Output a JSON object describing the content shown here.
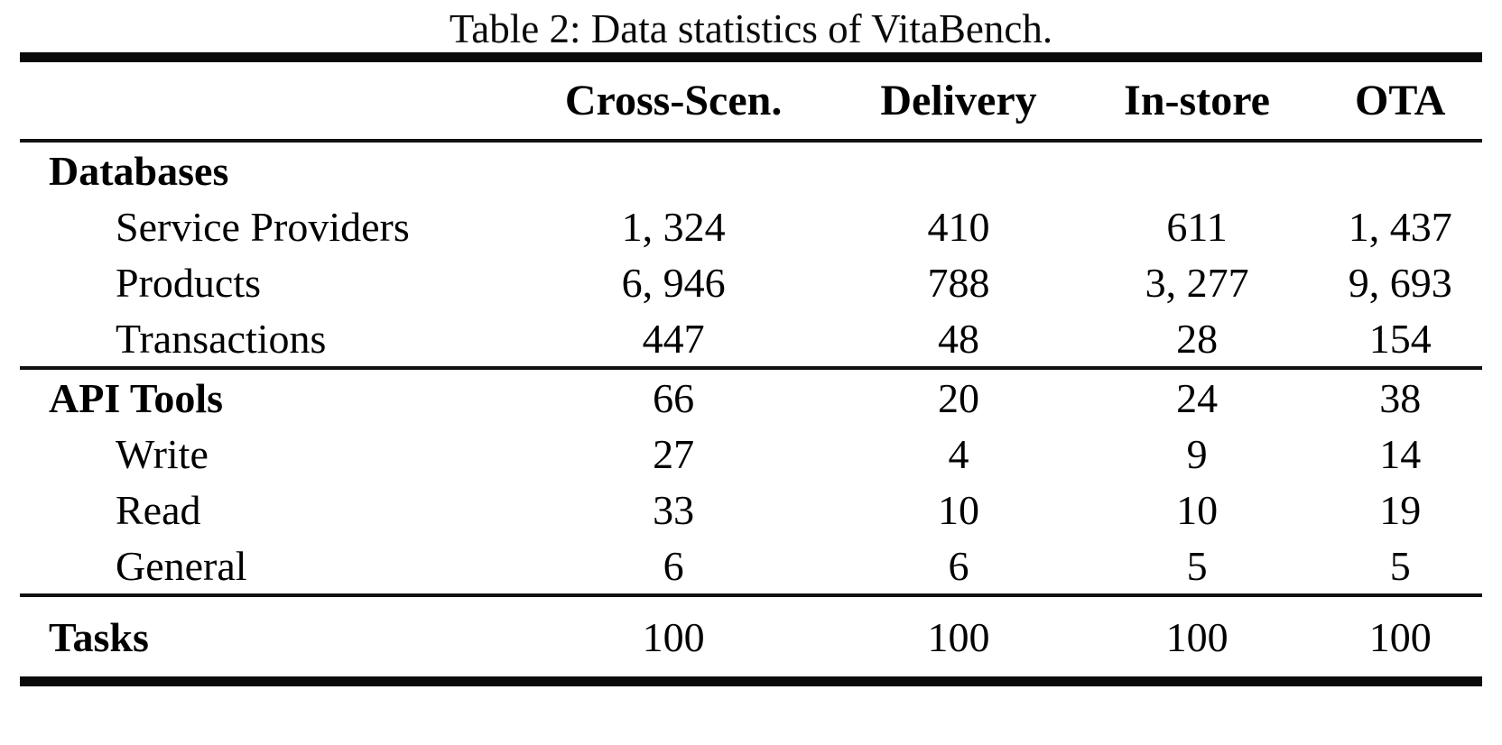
{
  "title": "Table 2: Data statistics of VitaBench.",
  "table": {
    "columns": [
      "Cross-Scen.",
      "Delivery",
      "In-store",
      "OTA"
    ],
    "rows": [
      {
        "label": "Databases",
        "style": "section",
        "values": [
          "",
          "",
          "",
          ""
        ]
      },
      {
        "label": "Service Providers",
        "style": "sub",
        "values": [
          "1, 324",
          "410",
          "611",
          "1, 437"
        ]
      },
      {
        "label": "Products",
        "style": "sub",
        "values": [
          "6, 946",
          "788",
          "3, 277",
          "9, 693"
        ]
      },
      {
        "label": "Transactions",
        "style": "sub",
        "values": [
          "447",
          "48",
          "28",
          "154"
        ]
      },
      {
        "label": "API Tools",
        "style": "section",
        "values": [
          "66",
          "20",
          "24",
          "38"
        ]
      },
      {
        "label": "Write",
        "style": "sub",
        "values": [
          "27",
          "4",
          "9",
          "14"
        ]
      },
      {
        "label": "Read",
        "style": "sub",
        "values": [
          "33",
          "10",
          "10",
          "19"
        ]
      },
      {
        "label": "General",
        "style": "sub",
        "values": [
          "6",
          "6",
          "5",
          "5"
        ]
      },
      {
        "label": "Tasks",
        "style": "section",
        "values": [
          "100",
          "100",
          "100",
          "100"
        ]
      }
    ]
  },
  "colors": {
    "background": "#ffffff",
    "text": "#0a0a0a",
    "rule": "#0a0a0a"
  }
}
